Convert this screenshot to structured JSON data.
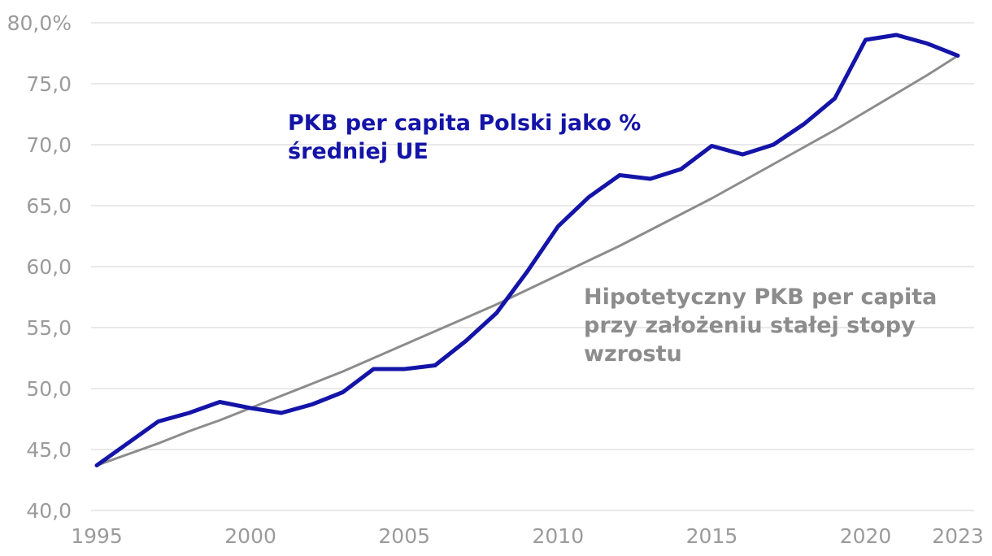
{
  "chart_data": {
    "type": "line",
    "xlim": [
      1995,
      2023
    ],
    "ylim": [
      40,
      80
    ],
    "x_ticks": [
      "1995",
      "2000",
      "2005",
      "2010",
      "2015",
      "2020",
      "2023"
    ],
    "x_tick_values": [
      1995,
      2000,
      2005,
      2010,
      2015,
      2020,
      2023
    ],
    "y_ticks": [
      "40,0",
      "45,0",
      "50,0",
      "55,0",
      "60,0",
      "65,0",
      "70,0",
      "75,0",
      "80,0%"
    ],
    "y_tick_values": [
      40,
      45,
      50,
      55,
      60,
      65,
      70,
      75,
      80
    ],
    "grid": true,
    "x": [
      1995,
      1996,
      1997,
      1998,
      1999,
      2000,
      2001,
      2002,
      2003,
      2004,
      2005,
      2006,
      2007,
      2008,
      2009,
      2010,
      2011,
      2012,
      2013,
      2014,
      2015,
      2016,
      2017,
      2018,
      2019,
      2020,
      2021,
      2022,
      2023
    ],
    "series": [
      {
        "label": "PKB per capita Polski jako % średniej UE",
        "color": "#1414a8",
        "values": [
          43.7,
          45.5,
          47.3,
          48.0,
          48.9,
          48.4,
          48.0,
          48.7,
          49.7,
          51.6,
          51.6,
          51.9,
          53.9,
          56.2,
          59.6,
          63.3,
          65.7,
          67.5,
          67.2,
          68.0,
          69.9,
          69.2,
          70.0,
          71.7,
          73.8,
          78.6,
          79.0,
          78.3,
          77.3
        ]
      },
      {
        "label": "Hipotetyczny PKB per capita przy założeniu stałej stopy wzrostu",
        "color": "#8c8c8c",
        "values": [
          43.7,
          44.6,
          45.5,
          46.5,
          47.4,
          48.4,
          49.4,
          50.4,
          51.4,
          52.5,
          53.6,
          54.7,
          55.8,
          56.9,
          58.1,
          59.3,
          60.5,
          61.7,
          63.0,
          64.3,
          65.6,
          67.0,
          68.4,
          69.8,
          71.2,
          72.7,
          74.2,
          75.7,
          77.3
        ]
      }
    ]
  }
}
